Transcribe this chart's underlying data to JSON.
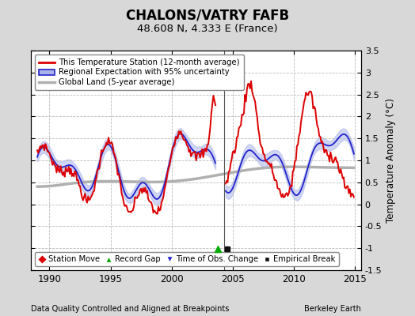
{
  "title": "CHALONS/VATRY FAFB",
  "subtitle": "48.608 N, 4.333 E (France)",
  "xlabel_left": "Data Quality Controlled and Aligned at Breakpoints",
  "xlabel_right": "Berkeley Earth",
  "ylabel": "Temperature Anomaly (°C)",
  "xlim": [
    1988.5,
    2015.5
  ],
  "ylim": [
    -1.5,
    3.5
  ],
  "yticks": [
    -1.5,
    -1.0,
    -0.5,
    0.0,
    0.5,
    1.0,
    1.5,
    2.0,
    2.5,
    3.0,
    3.5
  ],
  "xticks": [
    1990,
    1995,
    2000,
    2005,
    2010,
    2015
  ],
  "vertical_line_x": 2004.3,
  "record_gap_x": 2003.75,
  "record_gap_y": -1.02,
  "empirical_break_x": 2004.55,
  "empirical_break_y": -1.02,
  "bg_color": "#d8d8d8",
  "plot_bg_color": "#ffffff",
  "grid_color": "#bbbbbb"
}
